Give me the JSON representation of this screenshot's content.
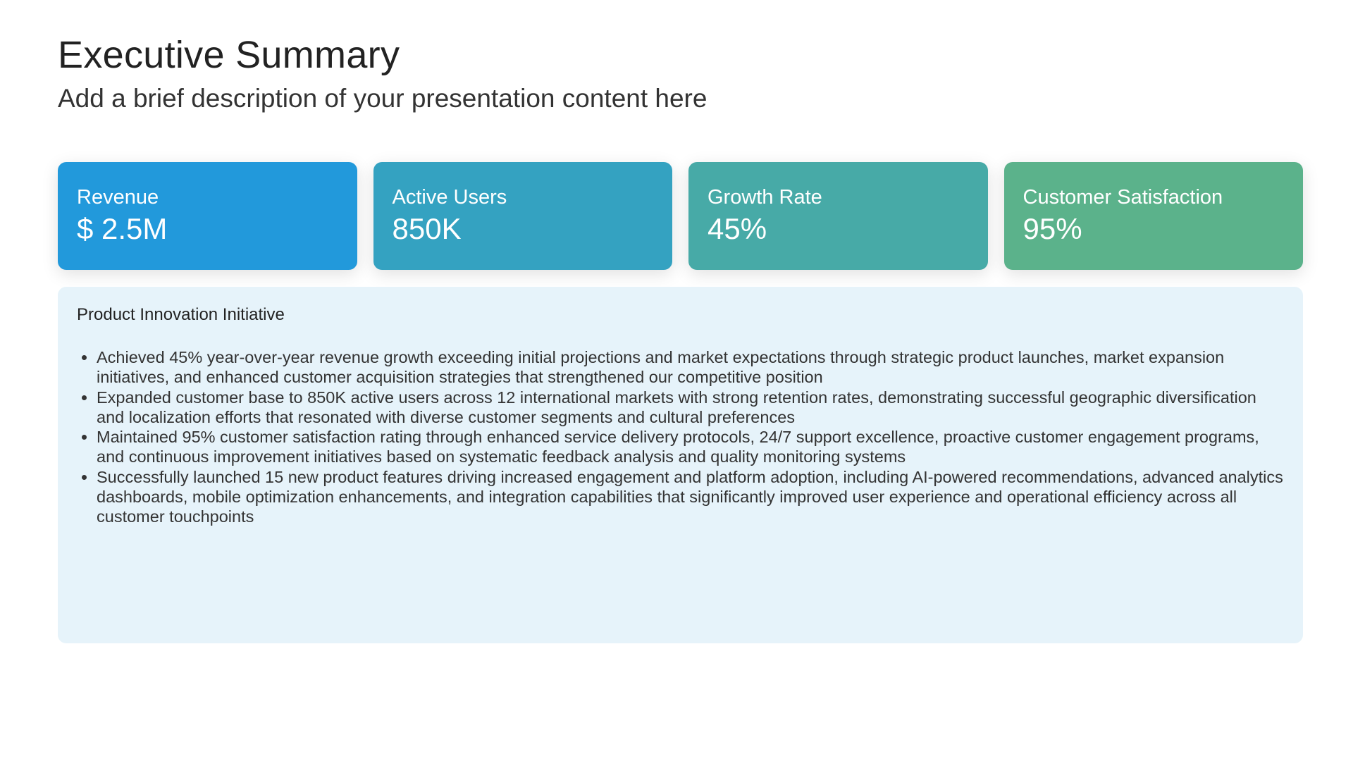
{
  "header": {
    "title": "Executive Summary",
    "subtitle": "Add a brief description of your presentation content here"
  },
  "metrics": [
    {
      "label": "Revenue",
      "value": "$ 2.5M",
      "color": "#2299db"
    },
    {
      "label": "Active Users",
      "value": "850K",
      "color": "#34a2c1"
    },
    {
      "label": "Growth Rate",
      "value": "45%",
      "color": "#47aaa7"
    },
    {
      "label": "Customer Satisfaction",
      "value": "95%",
      "color": "#5bb28b"
    }
  ],
  "panel": {
    "title": "Product Innovation Initiative",
    "background": "#e6f3fa",
    "bullets": [
      "Achieved 45% year-over-year revenue growth exceeding initial projections and market expectations through strategic product launches, market expansion initiatives, and enhanced customer acquisition strategies that strengthened our competitive position",
      "Expanded customer base to 850K active users across 12 international markets with strong retention rates, demonstrating successful geographic diversification and localization efforts that resonated with diverse customer segments and cultural preferences",
      "Maintained 95% customer satisfaction rating through enhanced service delivery protocols, 24/7 support excellence, proactive customer engagement programs, and continuous improvement initiatives based on systematic feedback analysis and quality monitoring systems",
      "Successfully launched 15 new product features driving increased engagement and platform adoption, including AI-powered recommendations, advanced analytics dashboards, mobile optimization enhancements, and integration capabilities that significantly improved user experience and operational efficiency across all customer touchpoints"
    ]
  }
}
